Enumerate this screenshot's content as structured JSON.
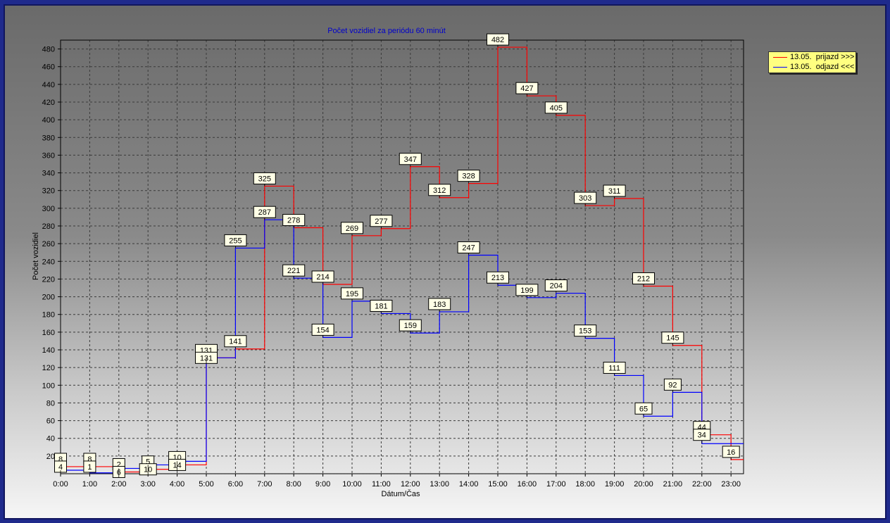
{
  "chart_data": {
    "type": "line",
    "title": "Počet vozidiel za periódu 60 minút",
    "xlabel": "Dátum/Čas",
    "ylabel": "Počet vozidiel",
    "ylim": [
      0,
      490
    ],
    "y_ticks": [
      20,
      40,
      60,
      80,
      100,
      120,
      140,
      160,
      180,
      200,
      220,
      240,
      260,
      280,
      300,
      320,
      340,
      360,
      380,
      400,
      420,
      440,
      460,
      480
    ],
    "categories": [
      "0:00",
      "1:00",
      "2:00",
      "3:00",
      "4:00",
      "5:00",
      "6:00",
      "7:00",
      "8:00",
      "9:00",
      "10:00",
      "11:00",
      "12:00",
      "13:00",
      "14:00",
      "15:00",
      "16:00",
      "17:00",
      "18:00",
      "19:00",
      "20:00",
      "21:00",
      "22:00",
      "23:00"
    ],
    "grid": true,
    "step": true,
    "legend_position": "top-right",
    "series": [
      {
        "name": "13.05.  prijazd >>>",
        "color": "#ff0000",
        "values": [
          8,
          8,
          2,
          5,
          10,
          131,
          141,
          325,
          278,
          214,
          269,
          277,
          347,
          312,
          328,
          482,
          427,
          405,
          303,
          311,
          212,
          145,
          44,
          16
        ]
      },
      {
        "name": "13.05.  odjazd <<<",
        "color": "#0000ff",
        "values": [
          4,
          1,
          6,
          10,
          14,
          131,
          255,
          287,
          221,
          154,
          195,
          181,
          159,
          183,
          247,
          213,
          199,
          204,
          153,
          111,
          65,
          92,
          34,
          34
        ]
      }
    ],
    "data_labels": [
      "4",
      "8",
      "1",
      "6",
      "10",
      "14",
      "131",
      "141",
      "255",
      "325",
      "287",
      "278",
      "221",
      "214",
      "154",
      "269",
      "195",
      "277",
      "181",
      "159",
      "347",
      "312",
      "183",
      "328",
      "247",
      "482",
      "213",
      "427",
      "199",
      "405",
      "204",
      "303",
      "153",
      "311",
      "111",
      "212",
      "65",
      "145",
      "92",
      "44",
      "34",
      "16"
    ]
  }
}
